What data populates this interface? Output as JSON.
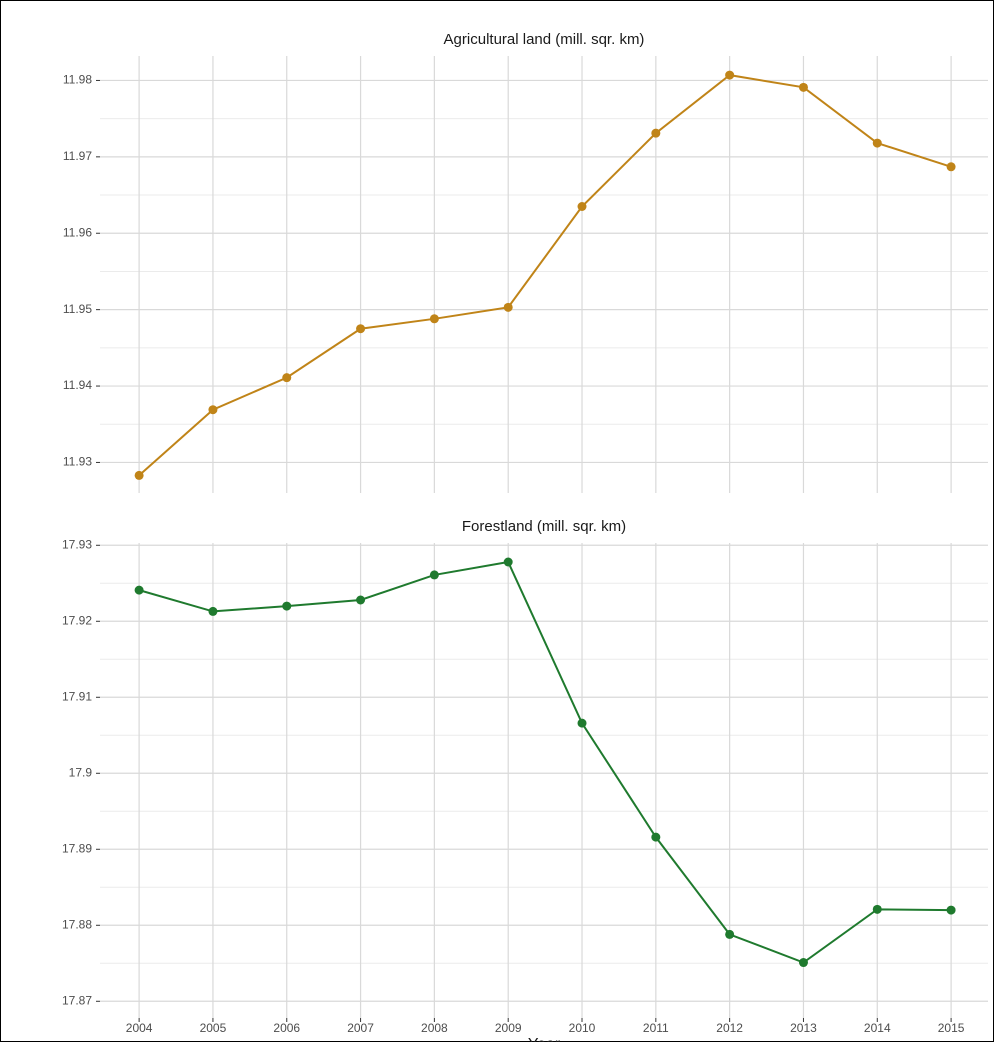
{
  "chart_data": [
    {
      "type": "line",
      "title": "Agricultural land (mill. sqr. km)",
      "x": [
        2004,
        2005,
        2006,
        2007,
        2008,
        2009,
        2010,
        2011,
        2012,
        2013,
        2014,
        2015
      ],
      "series": [
        {
          "color": "#c08418",
          "values": [
            11.9283,
            11.9369,
            11.9411,
            11.9475,
            11.9488,
            11.9503,
            11.9635,
            11.9731,
            11.9807,
            11.9791,
            11.9718,
            11.9687
          ]
        }
      ],
      "xlim": [
        2003.47,
        2015.5
      ],
      "xticks": [
        2004,
        2005,
        2006,
        2007,
        2008,
        2009,
        2010,
        2011,
        2012,
        2013,
        2014,
        2015
      ],
      "ylim": [
        11.926,
        11.9832
      ],
      "yticks": [
        11.93,
        11.94,
        11.95,
        11.96,
        11.97,
        11.98
      ],
      "grid": true
    },
    {
      "type": "line",
      "title": "Forestland (mill. sqr. km)",
      "xlabel": "Year",
      "x": [
        2004,
        2005,
        2006,
        2007,
        2008,
        2009,
        2010,
        2011,
        2012,
        2013,
        2014,
        2015
      ],
      "series": [
        {
          "color": "#1f7a2e",
          "values": [
            17.9241,
            17.9213,
            17.922,
            17.9228,
            17.9261,
            17.9278,
            17.9066,
            17.8916,
            17.8788,
            17.8751,
            17.8821,
            17.882
          ]
        }
      ],
      "xlim": [
        2003.47,
        2015.5
      ],
      "xticks": [
        2004,
        2005,
        2006,
        2007,
        2008,
        2009,
        2010,
        2011,
        2012,
        2013,
        2014,
        2015
      ],
      "ylim": [
        17.8678,
        17.9303
      ],
      "yticks": [
        17.87,
        17.88,
        17.89,
        17.9,
        17.91,
        17.92,
        17.93
      ],
      "grid": true
    }
  ]
}
